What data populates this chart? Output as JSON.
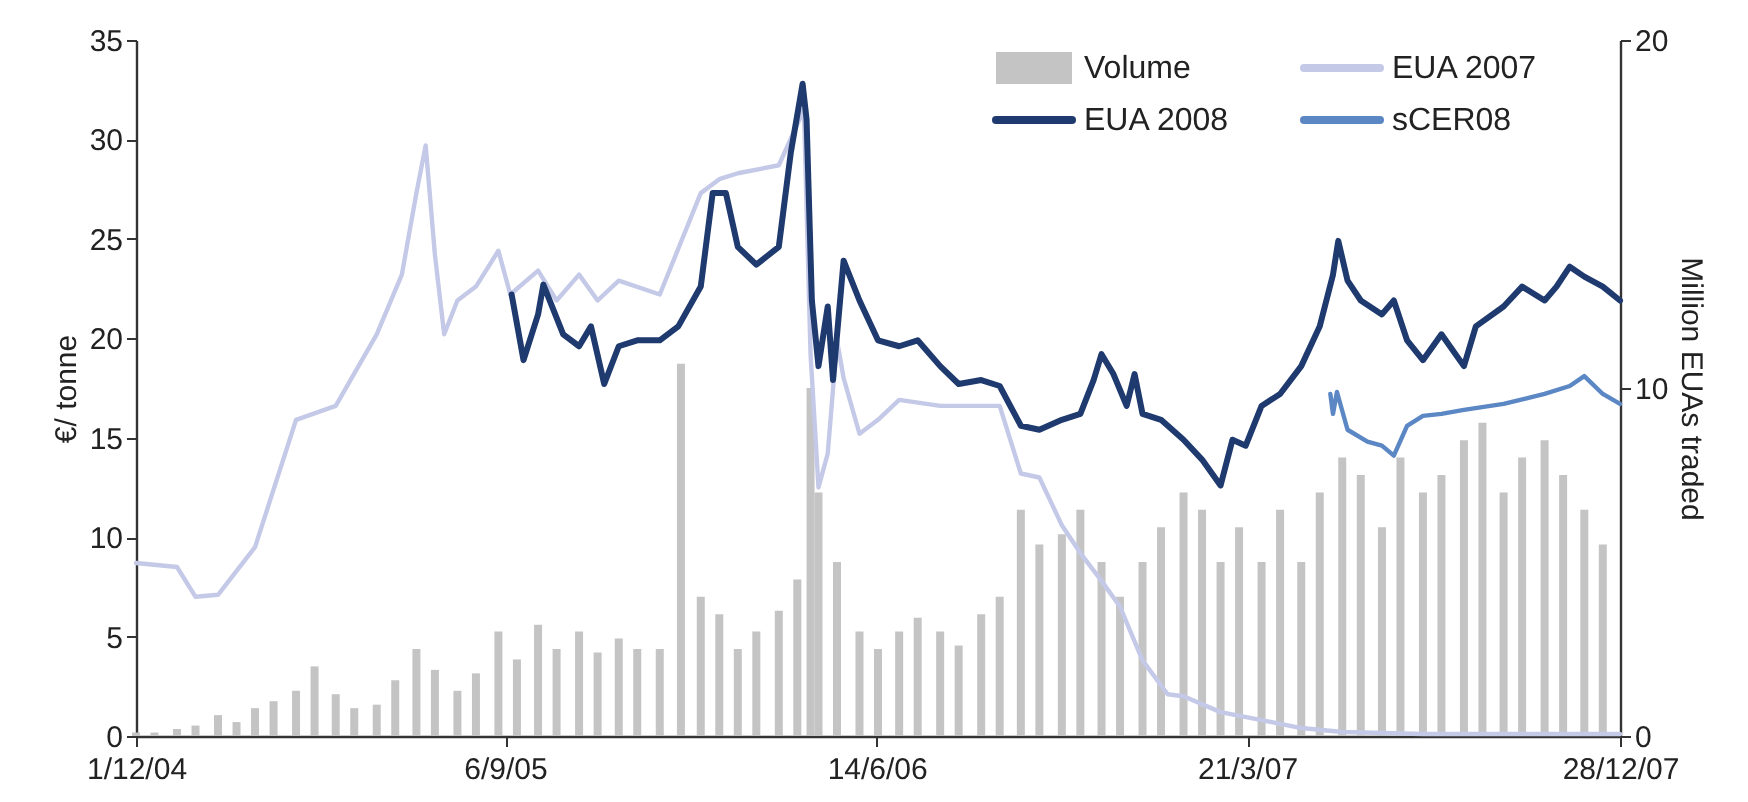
{
  "chart_data": {
    "type": "line",
    "ylabel": "€/ tonne",
    "y2label": "Million EUAs traded",
    "legend": "top right",
    "line_style": "solid",
    "xlim": [
      "2004-12-01",
      "2007-12-28"
    ],
    "xticks": [
      {
        "value": "2004-12-01",
        "label": "1/12/04"
      },
      {
        "value": "2005-09-06",
        "label": "6/9/05"
      },
      {
        "value": "2006-06-14",
        "label": "14/6/06"
      },
      {
        "value": "2007-03-21",
        "label": "21/3/07"
      },
      {
        "value": "2007-12-28",
        "label": "28/12/07"
      }
    ],
    "ylim": [
      0,
      35
    ],
    "yticks": [
      0,
      5,
      10,
      15,
      20,
      25,
      30,
      35
    ],
    "y2lim": [
      0,
      20
    ],
    "y2ticks": [
      0,
      10,
      20
    ],
    "series": [
      {
        "name": "Volume",
        "type": "bar",
        "axis": "y2",
        "color": "#c4c4c4",
        "x": [
          "2004-12-01",
          "2004-12-15",
          "2005-01-01",
          "2005-01-15",
          "2005-02-01",
          "2005-02-15",
          "2005-03-01",
          "2005-03-15",
          "2005-04-01",
          "2005-04-15",
          "2005-05-01",
          "2005-05-15",
          "2005-06-01",
          "2005-06-15",
          "2005-07-01",
          "2005-07-15",
          "2005-08-01",
          "2005-08-15",
          "2005-09-01",
          "2005-09-15",
          "2005-10-01",
          "2005-10-15",
          "2005-11-01",
          "2005-11-15",
          "2005-12-01",
          "2005-12-15",
          "2006-01-01",
          "2006-01-17",
          "2006-02-01",
          "2006-02-15",
          "2006-03-01",
          "2006-03-15",
          "2006-04-01",
          "2006-04-15",
          "2006-04-25",
          "2006-05-01",
          "2006-05-15",
          "2006-06-01",
          "2006-06-15",
          "2006-07-01",
          "2006-07-15",
          "2006-08-01",
          "2006-08-15",
          "2006-09-01",
          "2006-09-15",
          "2006-10-01",
          "2006-10-15",
          "2006-11-01",
          "2006-11-15",
          "2006-12-01",
          "2006-12-15",
          "2007-01-01",
          "2007-01-15",
          "2007-02-01",
          "2007-02-15",
          "2007-03-01",
          "2007-03-15",
          "2007-04-01",
          "2007-04-15",
          "2007-05-01",
          "2007-05-15",
          "2007-06-01",
          "2007-06-15",
          "2007-07-01",
          "2007-07-15",
          "2007-08-01",
          "2007-08-15",
          "2007-09-01",
          "2007-09-15",
          "2007-10-01",
          "2007-10-15",
          "2007-11-01",
          "2007-11-15",
          "2007-12-01",
          "2007-12-15"
        ],
        "values": [
          0.1,
          0.1,
          0.2,
          0.3,
          0.6,
          0.4,
          0.8,
          1.0,
          1.3,
          2.0,
          1.2,
          0.8,
          0.9,
          1.6,
          2.5,
          1.9,
          1.3,
          1.8,
          3.0,
          2.2,
          3.2,
          2.5,
          3.0,
          2.4,
          2.8,
          2.5,
          2.5,
          10.7,
          4.0,
          3.5,
          2.5,
          3.0,
          3.6,
          4.5,
          10.0,
          7.0,
          5.0,
          3.0,
          2.5,
          3.0,
          3.4,
          3.0,
          2.6,
          3.5,
          4.0,
          6.5,
          5.5,
          5.8,
          6.5,
          5.0,
          4.0,
          5.0,
          6.0,
          7.0,
          6.5,
          5.0,
          6.0,
          5.0,
          6.5,
          5.0,
          7.0,
          8.0,
          7.5,
          6.0,
          8.0,
          7.0,
          7.5,
          8.5,
          9.0,
          7.0,
          8.0,
          8.5,
          7.5,
          6.5,
          5.5
        ]
      },
      {
        "name": "EUA 2007",
        "type": "line",
        "color": "#c5c9e8",
        "x": [
          "2004-12-01",
          "2005-01-01",
          "2005-01-15",
          "2005-02-01",
          "2005-03-01",
          "2005-04-01",
          "2005-05-01",
          "2005-06-01",
          "2005-06-20",
          "2005-07-01",
          "2005-07-08",
          "2005-07-15",
          "2005-07-22",
          "2005-08-01",
          "2005-08-15",
          "2005-09-01",
          "2005-09-10",
          "2005-10-01",
          "2005-10-15",
          "2005-11-01",
          "2005-11-15",
          "2005-12-01",
          "2006-01-01",
          "2006-02-01",
          "2006-02-15",
          "2006-03-01",
          "2006-04-01",
          "2006-04-20",
          "2006-04-25",
          "2006-05-01",
          "2006-05-08",
          "2006-05-15",
          "2006-05-20",
          "2006-06-01",
          "2006-06-15",
          "2006-07-01",
          "2006-08-01",
          "2006-09-01",
          "2006-09-15",
          "2006-10-01",
          "2006-10-15",
          "2006-11-01",
          "2006-11-15",
          "2006-12-01",
          "2006-12-15",
          "2007-01-01",
          "2007-01-20",
          "2007-02-01",
          "2007-03-01",
          "2007-04-01",
          "2007-05-01",
          "2007-06-01",
          "2007-08-01",
          "2007-10-01",
          "2007-12-28"
        ],
        "values": [
          8.7,
          8.5,
          7.0,
          7.1,
          9.5,
          15.9,
          16.6,
          20.2,
          23.2,
          27.3,
          29.7,
          24.2,
          20.2,
          21.9,
          22.6,
          24.4,
          22.2,
          23.4,
          21.9,
          23.2,
          21.9,
          22.9,
          22.2,
          27.3,
          28.0,
          28.3,
          28.7,
          31.5,
          19.2,
          12.5,
          14.2,
          19.9,
          18.0,
          15.2,
          15.9,
          16.9,
          16.6,
          16.6,
          16.6,
          13.2,
          13.0,
          10.6,
          9.2,
          7.8,
          6.5,
          3.8,
          2.1,
          2.0,
          1.2,
          0.8,
          0.4,
          0.2,
          0.1,
          0.1,
          0.1
        ]
      },
      {
        "name": "EUA 2008",
        "type": "line",
        "color": "#1f3a6e",
        "x": [
          "2005-09-11",
          "2005-09-20",
          "2005-10-01",
          "2005-10-05",
          "2005-10-20",
          "2005-11-01",
          "2005-11-10",
          "2005-11-20",
          "2005-12-01",
          "2005-12-15",
          "2006-01-01",
          "2006-01-15",
          "2006-02-01",
          "2006-02-10",
          "2006-02-20",
          "2006-03-01",
          "2006-03-15",
          "2006-04-01",
          "2006-04-10",
          "2006-04-19",
          "2006-04-22",
          "2006-04-26",
          "2006-05-01",
          "2006-05-08",
          "2006-05-12",
          "2006-05-20",
          "2006-06-01",
          "2006-06-15",
          "2006-07-01",
          "2006-07-15",
          "2006-08-01",
          "2006-08-15",
          "2006-09-01",
          "2006-09-15",
          "2006-10-01",
          "2006-10-15",
          "2006-11-01",
          "2006-11-15",
          "2006-11-25",
          "2006-12-01",
          "2006-12-10",
          "2006-12-20",
          "2006-12-26",
          "2007-01-01",
          "2007-01-15",
          "2007-02-01",
          "2007-02-15",
          "2007-03-01",
          "2007-03-10",
          "2007-03-20",
          "2007-04-01",
          "2007-04-15",
          "2007-05-01",
          "2007-05-15",
          "2007-05-25",
          "2007-05-29",
          "2007-06-05",
          "2007-06-15",
          "2007-07-01",
          "2007-07-10",
          "2007-07-20",
          "2007-08-01",
          "2007-08-15",
          "2007-09-01",
          "2007-09-10",
          "2007-10-01",
          "2007-10-15",
          "2007-11-01",
          "2007-11-10",
          "2007-11-20",
          "2007-12-01",
          "2007-12-15",
          "2007-12-28"
        ],
        "values": [
          22.2,
          18.9,
          21.2,
          22.7,
          20.2,
          19.6,
          20.6,
          17.7,
          19.6,
          19.9,
          19.9,
          20.6,
          22.6,
          27.3,
          27.3,
          24.6,
          23.7,
          24.6,
          29.3,
          32.8,
          31.0,
          21.9,
          18.6,
          21.6,
          17.9,
          23.9,
          21.9,
          19.9,
          19.6,
          19.9,
          18.6,
          17.7,
          17.9,
          17.6,
          15.6,
          15.4,
          15.9,
          16.2,
          17.9,
          19.2,
          18.2,
          16.6,
          18.2,
          16.2,
          15.9,
          14.9,
          13.9,
          12.6,
          14.9,
          14.6,
          16.6,
          17.2,
          18.6,
          20.6,
          23.2,
          24.9,
          22.9,
          21.9,
          21.2,
          21.9,
          19.9,
          18.9,
          20.2,
          18.6,
          20.6,
          21.6,
          22.6,
          21.9,
          22.6,
          23.6,
          23.1,
          22.6,
          21.9
        ]
      },
      {
        "name": "sCER08",
        "type": "line",
        "color": "#5b87c4",
        "x": [
          "2007-05-23",
          "2007-05-25",
          "2007-05-28",
          "2007-06-05",
          "2007-06-20",
          "2007-07-01",
          "2007-07-10",
          "2007-07-20",
          "2007-08-01",
          "2007-08-15",
          "2007-09-01",
          "2007-10-01",
          "2007-11-01",
          "2007-11-20",
          "2007-12-01",
          "2007-12-15",
          "2007-12-28"
        ],
        "values": [
          17.2,
          16.2,
          17.3,
          15.4,
          14.8,
          14.6,
          14.1,
          15.6,
          16.1,
          16.2,
          16.4,
          16.7,
          17.2,
          17.6,
          18.1,
          17.2,
          16.7
        ]
      }
    ]
  }
}
